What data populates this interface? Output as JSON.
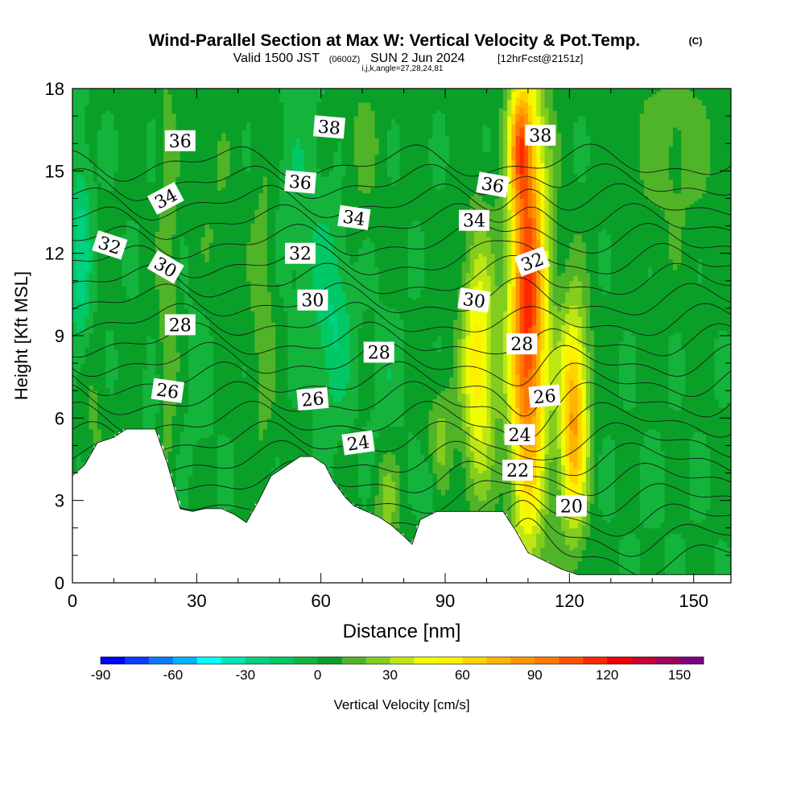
{
  "header": {
    "title": "Wind-Parallel Section at Max W: Vertical Velocity & Pot.Temp.",
    "copyright": "(C)",
    "valid_prefix": "Valid 1500 JST",
    "valid_utc": "(0600Z)",
    "valid_date": "SUN 2 Jun 2024",
    "forecast": "[12hrFcst@2151z]",
    "indices": "i,j,k,angle=27,28,24,81"
  },
  "chart_data": {
    "type": "heatmap",
    "xlabel": "Distance [nm]",
    "ylabel": "Height [Kft MSL]",
    "xlim": [
      0,
      159
    ],
    "ylim": [
      0,
      18
    ],
    "x_ticks": [
      0,
      30,
      60,
      90,
      120,
      150
    ],
    "y_ticks": [
      0,
      3,
      6,
      9,
      12,
      15,
      18
    ],
    "colorbar": {
      "label": "Vertical Velocity [cm/s]",
      "range": [
        -90,
        160
      ],
      "step": 10,
      "tick_values": [
        -90,
        -60,
        -30,
        0,
        30,
        60,
        90,
        120,
        150
      ],
      "colors": [
        "#0000ff",
        "#0a3cff",
        "#0a78ff",
        "#00b4ff",
        "#00ffff",
        "#00e6b4",
        "#00d282",
        "#00c864",
        "#14b43c",
        "#0aa028",
        "#50b428",
        "#82cd1e",
        "#bee614",
        "#f0ff00",
        "#fff000",
        "#ffd200",
        "#ffb400",
        "#ff9600",
        "#ff7800",
        "#ff5000",
        "#ff2800",
        "#f00000",
        "#c80032",
        "#a0005a",
        "#7d0082"
      ]
    },
    "terrain": [
      [
        0,
        3.9
      ],
      [
        3,
        4.3
      ],
      [
        6,
        5.1
      ],
      [
        10,
        5.3
      ],
      [
        13,
        5.6
      ],
      [
        20,
        5.6
      ],
      [
        23,
        4.3
      ],
      [
        26,
        2.7
      ],
      [
        29,
        2.6
      ],
      [
        32,
        2.7
      ],
      [
        36,
        2.7
      ],
      [
        39,
        2.5
      ],
      [
        42,
        2.2
      ],
      [
        45,
        3.0
      ],
      [
        48,
        3.9
      ],
      [
        52,
        4.3
      ],
      [
        55,
        4.6
      ],
      [
        58,
        4.6
      ],
      [
        61,
        4.3
      ],
      [
        63,
        3.7
      ],
      [
        66,
        3.1
      ],
      [
        68,
        2.8
      ],
      [
        71,
        2.6
      ],
      [
        74,
        2.4
      ],
      [
        77,
        2.1
      ],
      [
        80,
        1.7
      ],
      [
        82,
        1.4
      ],
      [
        84,
        2.3
      ],
      [
        88,
        2.6
      ],
      [
        96,
        2.6
      ],
      [
        104,
        2.6
      ],
      [
        107,
        1.9
      ],
      [
        110,
        1.1
      ],
      [
        114,
        0.8
      ],
      [
        118,
        0.5
      ],
      [
        122,
        0.3
      ],
      [
        126,
        0.3
      ],
      [
        159,
        0.3
      ]
    ],
    "velocity_field": {
      "background": 2,
      "features": [
        {
          "x": 110,
          "y": 10,
          "sx": 4.5,
          "sy": 8,
          "w": 112
        },
        {
          "x": 108,
          "y": 16,
          "sx": 2.5,
          "sy": 2,
          "w": 55
        },
        {
          "x": 121,
          "y": 6,
          "sx": 3.5,
          "sy": 4,
          "w": 80
        },
        {
          "x": 98,
          "y": 8,
          "sx": 4,
          "sy": 4.5,
          "w": 55
        },
        {
          "x": 89,
          "y": 5.5,
          "sx": 3,
          "sy": 2,
          "w": 20
        },
        {
          "x": 76,
          "y": 3,
          "sx": 3,
          "sy": 2,
          "w": 22
        },
        {
          "x": 46,
          "y": 10,
          "sx": 3,
          "sy": 6,
          "w": 15
        },
        {
          "x": 23,
          "y": 11,
          "sx": 2.2,
          "sy": 8,
          "w": 18
        },
        {
          "x": 34,
          "y": 13,
          "sx": 5,
          "sy": 5,
          "w": 8
        },
        {
          "x": 70,
          "y": 16,
          "sx": 5,
          "sy": 3,
          "w": 10
        },
        {
          "x": 145,
          "y": 16,
          "sx": 12,
          "sy": 4,
          "w": 12
        },
        {
          "x": 5,
          "y": 6,
          "sx": 3,
          "sy": 2.5,
          "w": 10
        },
        {
          "x": 2,
          "y": 12,
          "sx": 2.5,
          "sy": 4,
          "w": -26
        },
        {
          "x": 63,
          "y": 9.5,
          "sx": 4.5,
          "sy": 3.5,
          "w": -22
        },
        {
          "x": 55,
          "y": 14,
          "sx": 6,
          "sy": 4,
          "w": -10
        },
        {
          "x": 31,
          "y": 8,
          "sx": 4,
          "sy": 4,
          "w": -8
        },
        {
          "x": 19,
          "y": 6,
          "sx": 1.5,
          "sy": 1.5,
          "w": -12
        },
        {
          "x": 76,
          "y": 7,
          "sx": 4,
          "sy": 3,
          "w": -8
        },
        {
          "x": 86,
          "y": 3.4,
          "sx": 2,
          "sy": 1,
          "w": -14
        },
        {
          "x": 140,
          "y": 3,
          "sx": 15,
          "sy": 3,
          "w": -2
        }
      ]
    },
    "theta_contours": [
      {
        "value": 20,
        "label_at": [
          120.5,
          2.8
        ],
        "angle": 0
      },
      {
        "value": 22,
        "label_at": [
          107.5,
          4.1
        ],
        "angle": 0
      },
      {
        "value": 24,
        "label_at": [
          108,
          5.4
        ],
        "angle": 0
      },
      {
        "value": 24,
        "label_at": [
          69,
          5.1
        ],
        "angle": -8
      },
      {
        "value": 26,
        "label_at": [
          23,
          7.0
        ],
        "angle": 8
      },
      {
        "value": 26,
        "label_at": [
          58,
          6.7
        ],
        "angle": -5
      },
      {
        "value": 26,
        "label_at": [
          114,
          6.8
        ],
        "angle": -5
      },
      {
        "value": 28,
        "label_at": [
          26,
          9.4
        ],
        "angle": 0
      },
      {
        "value": 28,
        "label_at": [
          74,
          8.4
        ],
        "angle": 0
      },
      {
        "value": 28,
        "label_at": [
          108.5,
          8.7
        ],
        "angle": 0
      },
      {
        "value": 30,
        "label_at": [
          22.5,
          11.5
        ],
        "angle": 30
      },
      {
        "value": 30,
        "label_at": [
          58,
          10.3
        ],
        "angle": 0
      },
      {
        "value": 30,
        "label_at": [
          97,
          10.3
        ],
        "angle": 8
      },
      {
        "value": 32,
        "label_at": [
          9,
          12.3
        ],
        "angle": 18
      },
      {
        "value": 32,
        "label_at": [
          55,
          12.0
        ],
        "angle": 0
      },
      {
        "value": 32,
        "label_at": [
          111,
          11.7
        ],
        "angle": -20
      },
      {
        "value": 34,
        "label_at": [
          22.5,
          14.0
        ],
        "angle": -28
      },
      {
        "value": 34,
        "label_at": [
          68,
          13.3
        ],
        "angle": 8
      },
      {
        "value": 34,
        "label_at": [
          97,
          13.2
        ],
        "angle": 0
      },
      {
        "value": 36,
        "label_at": [
          26,
          16.1
        ],
        "angle": 0
      },
      {
        "value": 36,
        "label_at": [
          55,
          14.6
        ],
        "angle": 5
      },
      {
        "value": 36,
        "label_at": [
          101.5,
          14.5
        ],
        "angle": 10
      },
      {
        "value": 38,
        "label_at": [
          62,
          16.6
        ],
        "angle": 5
      },
      {
        "value": 38,
        "label_at": [
          113,
          16.3
        ],
        "angle": 0
      }
    ]
  }
}
